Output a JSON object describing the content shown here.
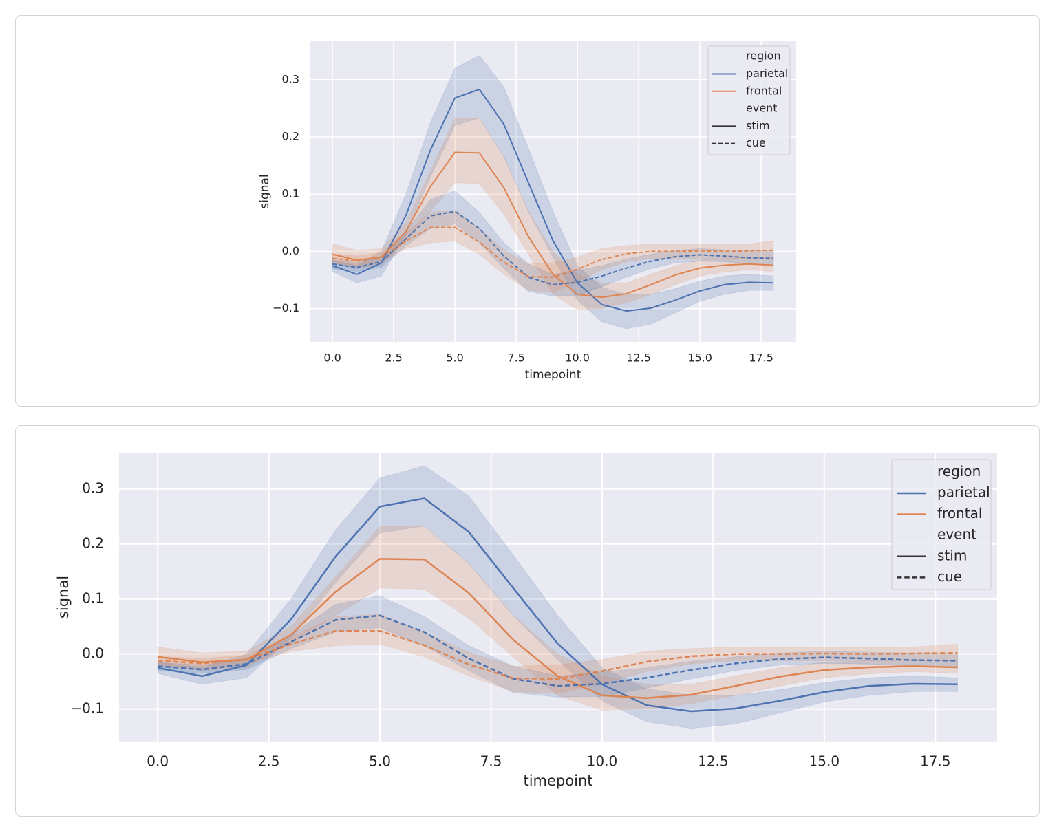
{
  "chart_data": [
    {
      "type": "line",
      "xlabel": "timepoint",
      "ylabel": "signal",
      "x": [
        0,
        1,
        2,
        3,
        4,
        5,
        6,
        7,
        8,
        9,
        10,
        11,
        12,
        13,
        14,
        15,
        16,
        17,
        18
      ],
      "xlim": [
        -0.9,
        18.9
      ],
      "ylim": [
        -0.158,
        0.367
      ],
      "xticks": [
        {
          "value": 0,
          "label": "0.0"
        },
        2.5,
        {
          "value": 5,
          "label": "5.0"
        },
        7.5,
        {
          "value": 10,
          "label": "10.0"
        },
        12.5,
        {
          "value": 15,
          "label": "15.0"
        },
        17.5
      ],
      "yticks": [
        {
          "value": -0.1,
          "label": "−0.1"
        },
        {
          "value": 0,
          "label": "0.0"
        },
        0.1,
        0.2,
        0.3
      ],
      "grid": true,
      "legend_loc": "upper right",
      "legend": {
        "groups": [
          {
            "title": "region",
            "entries": [
              {
                "label": "parietal",
                "color": "#4c72b0"
              },
              {
                "label": "frontal",
                "color": "#dd8452"
              }
            ]
          },
          {
            "title": "event",
            "entries": [
              {
                "label": "stim",
                "dash": "solid"
              },
              {
                "label": "cue",
                "dash": "dashed"
              }
            ]
          }
        ]
      },
      "series": [
        {
          "region": "parietal",
          "event": "stim",
          "values": [
            -0.025,
            -0.04,
            -0.02,
            0.063,
            0.177,
            0.268,
            0.283,
            0.222,
            0.12,
            0.019,
            -0.055,
            -0.093,
            -0.104,
            -0.099,
            -0.085,
            -0.069,
            -0.058,
            -0.054,
            -0.055
          ],
          "lower": [
            -0.035,
            -0.055,
            -0.043,
            0.03,
            0.13,
            0.22,
            0.233,
            0.165,
            0.07,
            -0.01,
            -0.085,
            -0.123,
            -0.135,
            -0.127,
            -0.107,
            -0.087,
            -0.075,
            -0.068,
            -0.068
          ],
          "upper": [
            -0.015,
            -0.025,
            0.0,
            0.1,
            0.225,
            0.32,
            0.342,
            0.287,
            0.18,
            0.07,
            -0.025,
            -0.063,
            -0.075,
            -0.075,
            -0.065,
            -0.052,
            -0.043,
            -0.04,
            -0.043
          ]
        },
        {
          "region": "frontal",
          "event": "stim",
          "values": [
            -0.005,
            -0.015,
            -0.01,
            0.035,
            0.113,
            0.173,
            0.172,
            0.111,
            0.026,
            -0.04,
            -0.075,
            -0.08,
            -0.074,
            -0.058,
            -0.041,
            -0.029,
            -0.024,
            -0.022,
            -0.024
          ],
          "lower": [
            -0.02,
            -0.03,
            -0.025,
            0.02,
            0.07,
            0.12,
            0.118,
            0.065,
            -0.005,
            -0.075,
            -0.102,
            -0.1,
            -0.09,
            -0.075,
            -0.058,
            -0.043,
            -0.036,
            -0.032,
            -0.035
          ],
          "upper": [
            0.013,
            0.002,
            0.005,
            0.05,
            0.14,
            0.232,
            0.232,
            0.165,
            0.07,
            0.0,
            -0.04,
            -0.055,
            -0.055,
            -0.04,
            -0.025,
            -0.015,
            -0.012,
            -0.01,
            -0.012
          ]
        },
        {
          "region": "parietal",
          "event": "cue",
          "values": [
            -0.022,
            -0.028,
            -0.018,
            0.022,
            0.062,
            0.07,
            0.04,
            -0.008,
            -0.045,
            -0.058,
            -0.054,
            -0.043,
            -0.029,
            -0.017,
            -0.009,
            -0.006,
            -0.008,
            -0.011,
            -0.012
          ],
          "lower": [
            -0.03,
            -0.035,
            -0.028,
            0.01,
            0.04,
            0.048,
            0.015,
            -0.03,
            -0.07,
            -0.078,
            -0.077,
            -0.062,
            -0.045,
            -0.03,
            -0.02,
            -0.017,
            -0.018,
            -0.022,
            -0.025
          ],
          "upper": [
            -0.015,
            -0.02,
            -0.008,
            0.035,
            0.09,
            0.106,
            0.068,
            0.015,
            -0.022,
            -0.04,
            -0.033,
            -0.025,
            -0.013,
            -0.005,
            0.002,
            0.005,
            0.003,
            0.002,
            0.0
          ]
        },
        {
          "region": "frontal",
          "event": "cue",
          "values": [
            -0.012,
            -0.017,
            -0.01,
            0.018,
            0.042,
            0.042,
            0.016,
            -0.019,
            -0.044,
            -0.045,
            -0.031,
            -0.014,
            -0.004,
            0.0,
            0.0,
            0.001,
            0.0,
            0.001,
            0.002
          ],
          "lower": [
            -0.02,
            -0.025,
            -0.018,
            0.005,
            0.015,
            0.018,
            -0.005,
            -0.04,
            -0.068,
            -0.072,
            -0.053,
            -0.032,
            -0.018,
            -0.012,
            -0.012,
            -0.012,
            -0.012,
            -0.012,
            -0.012
          ],
          "upper": [
            -0.004,
            -0.008,
            -0.002,
            0.032,
            0.068,
            0.072,
            0.04,
            0.003,
            -0.022,
            -0.02,
            -0.01,
            0.005,
            0.01,
            0.013,
            0.012,
            0.013,
            0.012,
            0.013,
            0.018
          ]
        }
      ]
    },
    {
      "type": "line",
      "xlabel": "timepoint",
      "ylabel": "signal",
      "x": [
        0,
        1,
        2,
        3,
        4,
        5,
        6,
        7,
        8,
        9,
        10,
        11,
        12,
        13,
        14,
        15,
        16,
        17,
        18
      ],
      "xlim": [
        -0.87,
        18.89
      ],
      "ylim": [
        -0.159,
        0.366
      ],
      "xticks": [
        {
          "value": 0,
          "label": "0.0"
        },
        2.5,
        {
          "value": 5,
          "label": "5.0"
        },
        7.5,
        {
          "value": 10,
          "label": "10.0"
        },
        12.5,
        {
          "value": 15,
          "label": "15.0"
        },
        17.5
      ],
      "yticks": [
        {
          "value": -0.1,
          "label": "−0.1"
        },
        {
          "value": 0,
          "label": "0.0"
        },
        0.1,
        0.2,
        0.3
      ],
      "grid": true,
      "legend_loc": "upper right",
      "legend": {
        "groups": [
          {
            "title": "region",
            "entries": [
              {
                "label": "parietal",
                "color": "#4c72b0"
              },
              {
                "label": "frontal",
                "color": "#dd8452"
              }
            ]
          },
          {
            "title": "event",
            "entries": [
              {
                "label": "stim",
                "dash": "solid"
              },
              {
                "label": "cue",
                "dash": "dashed"
              }
            ]
          }
        ]
      },
      "series": [
        {
          "region": "parietal",
          "event": "stim",
          "values": [
            -0.025,
            -0.04,
            -0.02,
            0.063,
            0.177,
            0.268,
            0.283,
            0.222,
            0.12,
            0.019,
            -0.055,
            -0.093,
            -0.104,
            -0.099,
            -0.085,
            -0.069,
            -0.058,
            -0.054,
            -0.055
          ],
          "lower": [
            -0.035,
            -0.055,
            -0.043,
            0.03,
            0.13,
            0.22,
            0.233,
            0.165,
            0.07,
            -0.01,
            -0.085,
            -0.123,
            -0.135,
            -0.127,
            -0.107,
            -0.087,
            -0.075,
            -0.068,
            -0.068
          ],
          "upper": [
            -0.015,
            -0.025,
            0.0,
            0.1,
            0.225,
            0.32,
            0.342,
            0.287,
            0.18,
            0.07,
            -0.025,
            -0.063,
            -0.075,
            -0.075,
            -0.065,
            -0.052,
            -0.043,
            -0.04,
            -0.043
          ]
        },
        {
          "region": "frontal",
          "event": "stim",
          "values": [
            -0.005,
            -0.015,
            -0.01,
            0.035,
            0.113,
            0.173,
            0.172,
            0.111,
            0.026,
            -0.04,
            -0.075,
            -0.08,
            -0.074,
            -0.058,
            -0.041,
            -0.029,
            -0.024,
            -0.022,
            -0.024
          ],
          "lower": [
            -0.02,
            -0.03,
            -0.025,
            0.02,
            0.07,
            0.12,
            0.118,
            0.065,
            -0.005,
            -0.075,
            -0.102,
            -0.1,
            -0.09,
            -0.075,
            -0.058,
            -0.043,
            -0.036,
            -0.032,
            -0.035
          ],
          "upper": [
            0.013,
            0.002,
            0.005,
            0.05,
            0.14,
            0.232,
            0.232,
            0.165,
            0.07,
            0.0,
            -0.04,
            -0.055,
            -0.055,
            -0.04,
            -0.025,
            -0.015,
            -0.012,
            -0.01,
            -0.012
          ]
        },
        {
          "region": "parietal",
          "event": "cue",
          "values": [
            -0.022,
            -0.028,
            -0.018,
            0.022,
            0.062,
            0.07,
            0.04,
            -0.008,
            -0.045,
            -0.058,
            -0.054,
            -0.043,
            -0.029,
            -0.017,
            -0.009,
            -0.006,
            -0.008,
            -0.011,
            -0.012
          ],
          "lower": [
            -0.03,
            -0.035,
            -0.028,
            0.01,
            0.04,
            0.048,
            0.015,
            -0.03,
            -0.07,
            -0.078,
            -0.077,
            -0.062,
            -0.045,
            -0.03,
            -0.02,
            -0.017,
            -0.018,
            -0.022,
            -0.025
          ],
          "upper": [
            -0.015,
            -0.02,
            -0.008,
            0.035,
            0.09,
            0.106,
            0.068,
            0.015,
            -0.022,
            -0.04,
            -0.033,
            -0.025,
            -0.013,
            -0.005,
            0.002,
            0.005,
            0.003,
            0.002,
            0.0
          ]
        },
        {
          "region": "frontal",
          "event": "cue",
          "values": [
            -0.012,
            -0.017,
            -0.01,
            0.018,
            0.042,
            0.042,
            0.016,
            -0.019,
            -0.044,
            -0.045,
            -0.031,
            -0.014,
            -0.004,
            0.0,
            0.0,
            0.001,
            0.0,
            0.001,
            0.002
          ],
          "lower": [
            -0.02,
            -0.025,
            -0.018,
            0.005,
            0.015,
            0.018,
            -0.005,
            -0.04,
            -0.068,
            -0.072,
            -0.053,
            -0.032,
            -0.018,
            -0.012,
            -0.012,
            -0.012,
            -0.012,
            -0.012,
            -0.012
          ],
          "upper": [
            -0.004,
            -0.008,
            -0.002,
            0.032,
            0.068,
            0.072,
            0.04,
            0.003,
            -0.022,
            -0.02,
            -0.01,
            0.005,
            0.01,
            0.013,
            0.012,
            0.013,
            0.012,
            0.013,
            0.018
          ]
        }
      ]
    }
  ]
}
